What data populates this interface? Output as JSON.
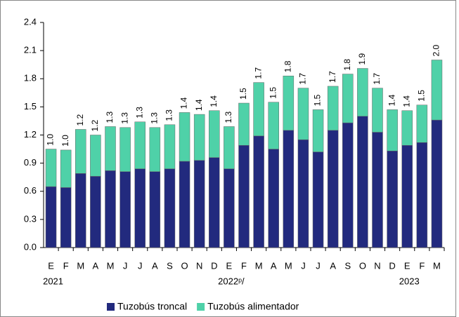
{
  "chart_data": {
    "type": "stacked_bar",
    "categories": [
      "E",
      "F",
      "M",
      "A",
      "M",
      "J",
      "J",
      "A",
      "S",
      "O",
      "N",
      "D",
      "E",
      "F",
      "M",
      "A",
      "M",
      "J",
      "J",
      "A",
      "S",
      "O",
      "N",
      "D",
      "E",
      "F",
      "M"
    ],
    "year_labels": [
      "2021",
      "2022ᵖ/",
      "2023"
    ],
    "series": [
      {
        "name": "Tuzobús troncal",
        "color": "#222a7e",
        "values": [
          0.65,
          0.64,
          0.79,
          0.76,
          0.82,
          0.81,
          0.84,
          0.81,
          0.84,
          0.92,
          0.93,
          0.96,
          0.84,
          1.09,
          1.19,
          1.05,
          1.25,
          1.15,
          1.02,
          1.25,
          1.33,
          1.4,
          1.23,
          1.03,
          1.09,
          1.12,
          1.36
        ]
      },
      {
        "name": "Tuzobús alimentador",
        "color": "#4fd1a8",
        "values": [
          0.4,
          0.4,
          0.47,
          0.44,
          0.47,
          0.47,
          0.5,
          0.47,
          0.47,
          0.52,
          0.49,
          0.5,
          0.45,
          0.45,
          0.57,
          0.5,
          0.58,
          0.55,
          0.45,
          0.47,
          0.52,
          0.51,
          0.47,
          0.44,
          0.37,
          0.4,
          0.64
        ]
      }
    ],
    "total_labels": [
      "1.0",
      "1.0",
      "1.2",
      "1.2",
      "1.3",
      "1.3",
      "1.3",
      "1.3",
      "1.3",
      "1.4",
      "1.4",
      "1.4",
      "1.3",
      "1.5",
      "1.7",
      "1.5",
      "1.8",
      "1.7",
      "1.5",
      "1.7",
      "1.8",
      "1.9",
      "1.7",
      "1.4",
      "1.4",
      "1.5",
      "2.0"
    ],
    "ylim": [
      0,
      2.4
    ],
    "yticks": [
      {
        "value": 0,
        "label": "0.0"
      },
      {
        "value": 0.3,
        "label": "0.3"
      },
      {
        "value": 0.6,
        "label": "0.6"
      },
      {
        "value": 0.9,
        "label": "0.9"
      },
      {
        "value": 1.2,
        "label": "1.2"
      },
      {
        "value": 1.5,
        "label": "1.5"
      },
      {
        "value": 1.8,
        "label": "1.8"
      },
      {
        "value": 2.1,
        "label": "2.1"
      },
      {
        "value": 2.4,
        "label": "2.4"
      }
    ],
    "legend": "bottom"
  }
}
